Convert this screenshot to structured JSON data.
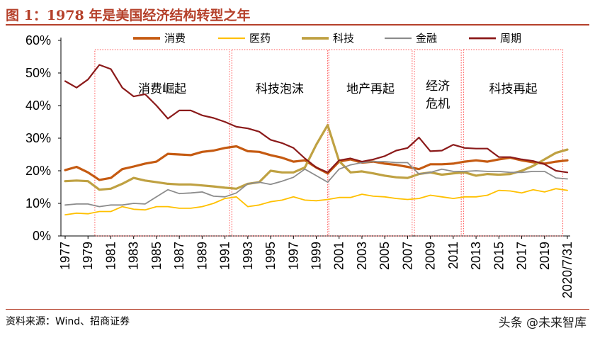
{
  "header": {
    "title": "图 1：1978 年是美国经济结构转型之年"
  },
  "footer": {
    "source": "资料来源：Wind、招商证券",
    "watermark": "头条 @未来智库"
  },
  "colors": {
    "消费": "#c55a11",
    "医药": "#ffc000",
    "科技": "#bfa142",
    "金融": "#8c8c8c",
    "周期": "#8b1a1a",
    "accent": "#b5402a",
    "region_border": "#ff4d4d"
  },
  "chart_data": {
    "type": "line",
    "title": "",
    "xlabel": "",
    "ylabel": "",
    "x": [
      "1977",
      "1978",
      "1979",
      "1980",
      "1981",
      "1982",
      "1983",
      "1984",
      "1985",
      "1986",
      "1987",
      "1988",
      "1989",
      "1990",
      "1991",
      "1992",
      "1993",
      "1994",
      "1995",
      "1996",
      "1997",
      "1998",
      "1999",
      "2000",
      "2001",
      "2002",
      "2003",
      "2004",
      "2005",
      "2006",
      "2007",
      "2008",
      "2009",
      "2010",
      "2011",
      "2012",
      "2013",
      "2014",
      "2015",
      "2016",
      "2017",
      "2018",
      "2019",
      "2020",
      "2020/7/31"
    ],
    "x_tick_labels": [
      "1977",
      "1979",
      "1981",
      "1983",
      "1985",
      "1987",
      "1989",
      "1991",
      "1993",
      "1995",
      "1997",
      "1999",
      "2001",
      "2003",
      "2005",
      "2007",
      "2009",
      "2011",
      "2013",
      "2015",
      "2017",
      "2019",
      "2020/7/31"
    ],
    "ylim": [
      0,
      0.6
    ],
    "y_ticks": [
      "0%",
      "10%",
      "20%",
      "30%",
      "40%",
      "50%",
      "60%"
    ],
    "legend_position": "top",
    "series": [
      {
        "name": "消费",
        "values": [
          0.202,
          0.212,
          0.195,
          0.172,
          0.178,
          0.205,
          0.213,
          0.222,
          0.228,
          0.252,
          0.25,
          0.248,
          0.258,
          0.262,
          0.27,
          0.275,
          0.26,
          0.258,
          0.248,
          0.24,
          0.228,
          0.232,
          0.21,
          0.192,
          0.228,
          0.235,
          0.225,
          0.228,
          0.222,
          0.218,
          0.212,
          0.205,
          0.22,
          0.22,
          0.222,
          0.228,
          0.232,
          0.228,
          0.235,
          0.24,
          0.232,
          0.226,
          0.222,
          0.228,
          0.232
        ]
      },
      {
        "name": "医药",
        "values": [
          0.065,
          0.07,
          0.068,
          0.075,
          0.075,
          0.09,
          0.082,
          0.08,
          0.09,
          0.09,
          0.085,
          0.085,
          0.09,
          0.1,
          0.115,
          0.12,
          0.09,
          0.095,
          0.105,
          0.11,
          0.12,
          0.11,
          0.108,
          0.112,
          0.118,
          0.118,
          0.128,
          0.122,
          0.12,
          0.115,
          0.112,
          0.115,
          0.125,
          0.12,
          0.115,
          0.12,
          0.12,
          0.125,
          0.14,
          0.138,
          0.132,
          0.142,
          0.135,
          0.145,
          0.14
        ]
      },
      {
        "name": "科技",
        "values": [
          0.168,
          0.17,
          0.168,
          0.142,
          0.145,
          0.16,
          0.178,
          0.17,
          0.165,
          0.16,
          0.158,
          0.158,
          0.155,
          0.152,
          0.148,
          0.145,
          0.16,
          0.165,
          0.2,
          0.195,
          0.195,
          0.21,
          0.28,
          0.34,
          0.23,
          0.195,
          0.198,
          0.192,
          0.185,
          0.18,
          0.178,
          0.19,
          0.195,
          0.188,
          0.192,
          0.195,
          0.185,
          0.19,
          0.188,
          0.19,
          0.2,
          0.215,
          0.235,
          0.255,
          0.265
        ]
      },
      {
        "name": "金融",
        "values": [
          0.095,
          0.098,
          0.098,
          0.09,
          0.095,
          0.095,
          0.1,
          0.098,
          0.12,
          0.142,
          0.13,
          0.132,
          0.135,
          0.122,
          0.12,
          0.132,
          0.16,
          0.165,
          0.158,
          0.168,
          0.18,
          0.205,
          0.185,
          0.165,
          0.205,
          0.218,
          0.225,
          0.228,
          0.228,
          0.225,
          0.225,
          0.19,
          0.195,
          0.205,
          0.198,
          0.198,
          0.2,
          0.198,
          0.198,
          0.195,
          0.195,
          0.198,
          0.198,
          0.178,
          0.175
        ]
      },
      {
        "name": "周期",
        "values": [
          0.475,
          0.455,
          0.48,
          0.525,
          0.512,
          0.455,
          0.428,
          0.435,
          0.4,
          0.36,
          0.385,
          0.385,
          0.37,
          0.362,
          0.35,
          0.335,
          0.33,
          0.32,
          0.295,
          0.285,
          0.27,
          0.238,
          0.21,
          0.195,
          0.232,
          0.238,
          0.228,
          0.235,
          0.245,
          0.262,
          0.27,
          0.302,
          0.26,
          0.262,
          0.28,
          0.27,
          0.268,
          0.268,
          0.242,
          0.242,
          0.235,
          0.23,
          0.22,
          0.2,
          0.195
        ]
      }
    ],
    "regions": [
      {
        "label": "消费崛起"
      },
      {
        "label": "科技泡沫"
      },
      {
        "label": "地产再起"
      },
      {
        "label": "经济危机"
      },
      {
        "label": "科技再起"
      }
    ]
  }
}
